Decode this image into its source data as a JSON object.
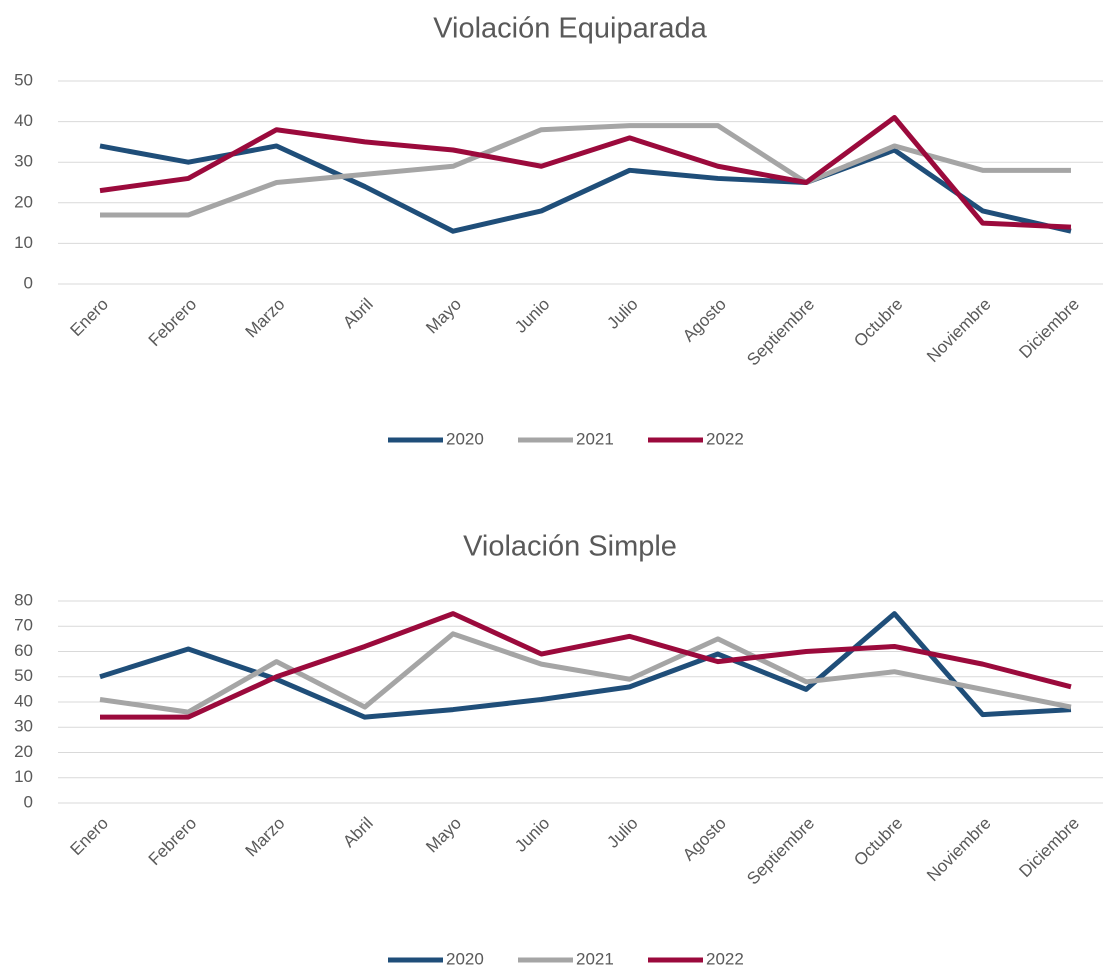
{
  "chart_data": [
    {
      "type": "line",
      "title": "Violación Equiparada",
      "categories": [
        "Enero",
        "Febrero",
        "Marzo",
        "Abril",
        "Mayo",
        "Junio",
        "Julio",
        "Agosto",
        "Septiembre",
        "Octubre",
        "Noviembre",
        "Diciembre"
      ],
      "series": [
        {
          "name": "2020",
          "color": "#1f4e79",
          "values": [
            34,
            30,
            34,
            24,
            13,
            18,
            28,
            26,
            25,
            33,
            18,
            13
          ]
        },
        {
          "name": "2021",
          "color": "#a5a5a5",
          "values": [
            17,
            17,
            25,
            27,
            29,
            38,
            39,
            39,
            25,
            34,
            28,
            28
          ]
        },
        {
          "name": "2022",
          "color": "#9b0a3c",
          "values": [
            23,
            26,
            38,
            35,
            33,
            29,
            36,
            29,
            25,
            41,
            15,
            14
          ]
        }
      ],
      "ylim": [
        0,
        50
      ],
      "yticks": [
        0,
        10,
        20,
        30,
        40,
        50
      ],
      "grid": true,
      "legend": "bottom"
    },
    {
      "type": "line",
      "title": "Violación Simple",
      "categories": [
        "Enero",
        "Febrero",
        "Marzo",
        "Abril",
        "Mayo",
        "Junio",
        "Julio",
        "Agosto",
        "Septiembre",
        "Octubre",
        "Noviembre",
        "Diciembre"
      ],
      "series": [
        {
          "name": "2020",
          "color": "#1f4e79",
          "values": [
            50,
            61,
            49,
            34,
            37,
            41,
            46,
            59,
            45,
            75,
            35,
            37
          ]
        },
        {
          "name": "2021",
          "color": "#a5a5a5",
          "values": [
            41,
            36,
            56,
            38,
            67,
            55,
            49,
            65,
            48,
            52,
            45,
            38
          ]
        },
        {
          "name": "2022",
          "color": "#9b0a3c",
          "values": [
            34,
            34,
            50,
            62,
            75,
            59,
            66,
            56,
            60,
            62,
            55,
            46
          ]
        }
      ],
      "ylim": [
        0,
        80
      ],
      "yticks": [
        0,
        10,
        20,
        30,
        40,
        50,
        60,
        70,
        80
      ],
      "grid": true,
      "legend": "bottom"
    }
  ]
}
